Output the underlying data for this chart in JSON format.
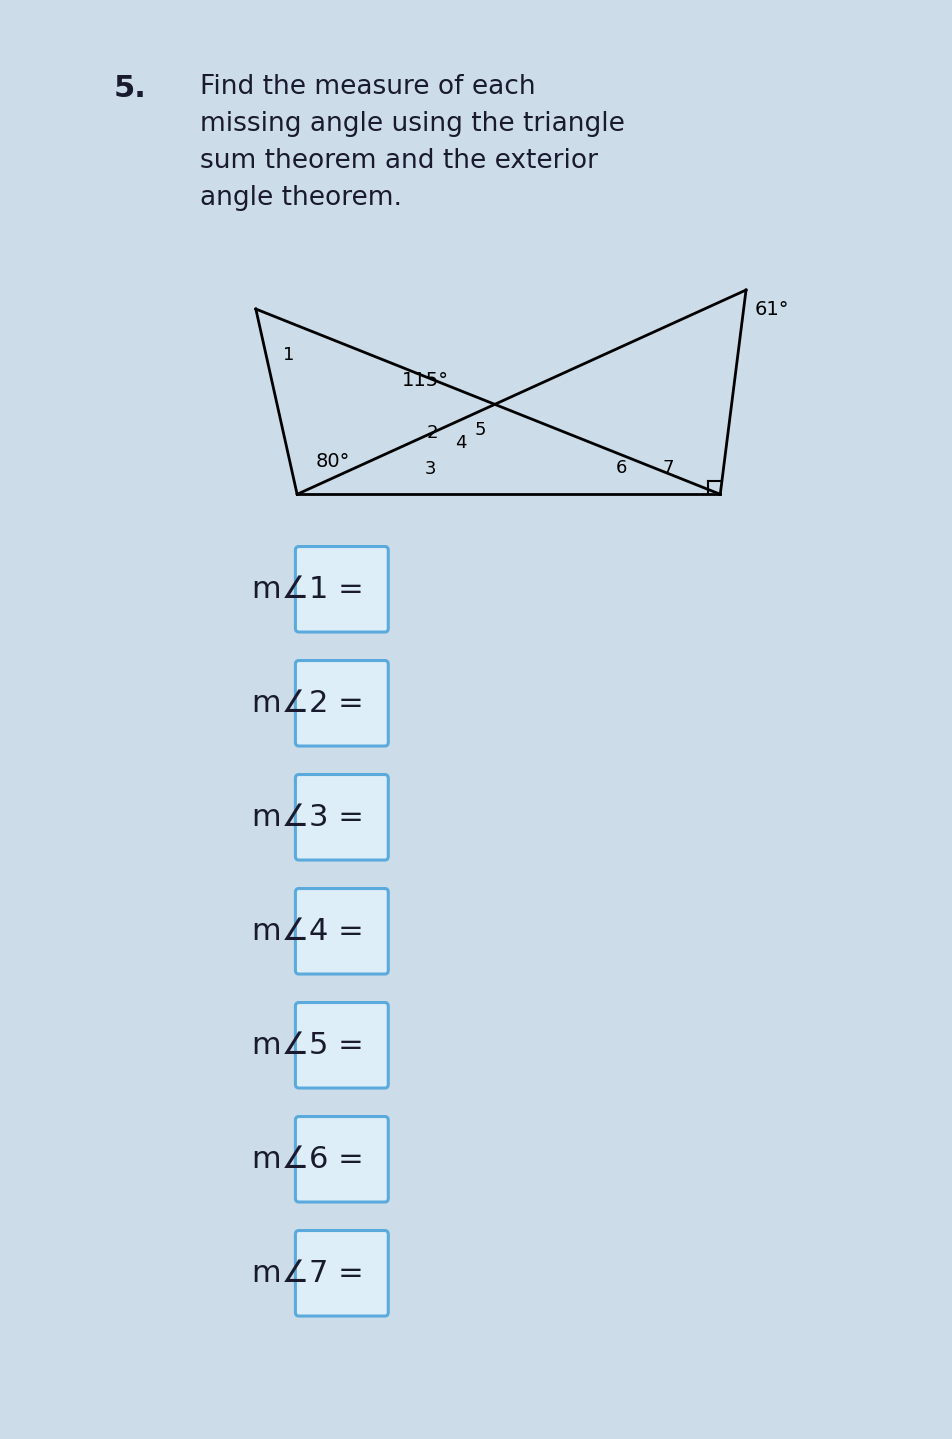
{
  "title_number": "5.",
  "title_text": "Find the measure of each\nmissing angle using the triangle\nsum theorem and the exterior\nangle theorem.",
  "title_color": "#1a1a2e",
  "title_fontsize": 19,
  "bg_color": "#ccdce8",
  "inner_bg_color": "#ffffff",
  "angle_labels": [
    "m∠1 =",
    "m∠2 =",
    "m∠3 =",
    "m∠4 =",
    "m∠5 =",
    "m∠6 =",
    "m∠7 ="
  ],
  "label_color": "#1a1a2e",
  "label_fontsize": 22,
  "box_color": "#5aaadd",
  "box_fill": "#ddeef8",
  "lw": 2.0
}
